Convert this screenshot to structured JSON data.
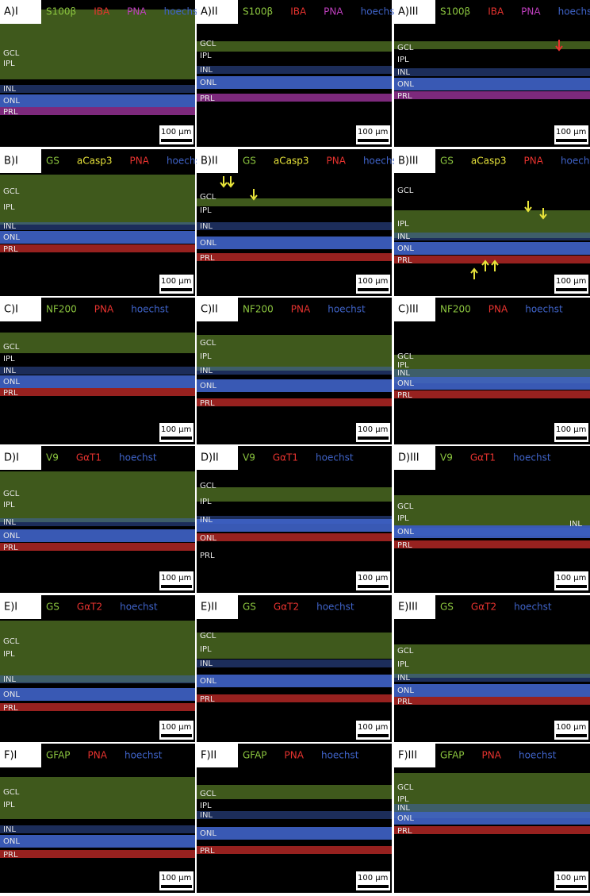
{
  "panels": [
    {
      "label": "A)I",
      "stains": [
        {
          "name": "S100β",
          "color": "#8cc63f"
        },
        {
          "name": "IBA",
          "color": "#e8332f"
        },
        {
          "name": "PNA",
          "color": "#c03fbf"
        },
        {
          "name": "hoechst",
          "color": "#3f63c8"
        }
      ],
      "layers": [
        "GCL",
        "IPL",
        "INL",
        "ONL",
        "PRL"
      ],
      "scale_bar": "100 µm"
    },
    {
      "label": "A)II",
      "stains": [
        {
          "name": "S100β",
          "color": "#8cc63f"
        },
        {
          "name": "IBA",
          "color": "#e8332f"
        },
        {
          "name": "PNA",
          "color": "#c03fbf"
        },
        {
          "name": "hoechst",
          "color": "#3f63c8"
        }
      ],
      "layers": [
        "GCL",
        "IPL",
        "INL",
        "ONL",
        "PRL"
      ],
      "scale_bar": "100 µm"
    },
    {
      "label": "A)III",
      "stains": [
        {
          "name": "S100β",
          "color": "#8cc63f"
        },
        {
          "name": "IBA",
          "color": "#e8332f"
        },
        {
          "name": "PNA",
          "color": "#c03fbf"
        },
        {
          "name": "hoechst",
          "color": "#3f63c8"
        }
      ],
      "layers": [
        "GCL",
        "IPL",
        "INL",
        "ONL",
        "PRL"
      ],
      "scale_bar": "100 µm"
    },
    {
      "label": "B)I",
      "stains": [
        {
          "name": "GS",
          "color": "#8cc63f"
        },
        {
          "name": "aCasp3",
          "color": "#e8e43a"
        },
        {
          "name": "PNA",
          "color": "#e8332f"
        },
        {
          "name": "hoechst",
          "color": "#3f63c8"
        }
      ],
      "layers": [
        "GCL",
        "IPL",
        "INL",
        "ONL",
        "PRL"
      ],
      "scale_bar": "100 µm"
    },
    {
      "label": "B)II",
      "stains": [
        {
          "name": "GS",
          "color": "#8cc63f"
        },
        {
          "name": "aCasp3",
          "color": "#e8e43a"
        },
        {
          "name": "PNA",
          "color": "#e8332f"
        },
        {
          "name": "hoechst",
          "color": "#3f63c8"
        }
      ],
      "layers": [
        "GCL",
        "IPL",
        "INL",
        "ONL",
        "PRL"
      ],
      "scale_bar": "100 µm"
    },
    {
      "label": "B)III",
      "stains": [
        {
          "name": "GS",
          "color": "#8cc63f"
        },
        {
          "name": "aCasp3",
          "color": "#e8e43a"
        },
        {
          "name": "PNA",
          "color": "#e8332f"
        },
        {
          "name": "hoechst",
          "color": "#3f63c8"
        }
      ],
      "layers": [
        "GCL",
        "IPL",
        "INL",
        "ONL",
        "PRL"
      ],
      "scale_bar": "100 µm"
    },
    {
      "label": "C)I",
      "stains": [
        {
          "name": "NF200",
          "color": "#8cc63f"
        },
        {
          "name": "PNA",
          "color": "#e8332f"
        },
        {
          "name": "hoechst",
          "color": "#3f63c8"
        }
      ],
      "layers": [
        "GCL",
        "IPL",
        "INL",
        "ONL",
        "PRL"
      ],
      "scale_bar": "100 µm"
    },
    {
      "label": "C)II",
      "stains": [
        {
          "name": "NF200",
          "color": "#8cc63f"
        },
        {
          "name": "PNA",
          "color": "#e8332f"
        },
        {
          "name": "hoechst",
          "color": "#3f63c8"
        }
      ],
      "layers": [
        "GCL",
        "IPL",
        "INL",
        "ONL",
        "PRL"
      ],
      "scale_bar": "100 µm"
    },
    {
      "label": "C)III",
      "stains": [
        {
          "name": "NF200",
          "color": "#8cc63f"
        },
        {
          "name": "PNA",
          "color": "#e8332f"
        },
        {
          "name": "hoechst",
          "color": "#3f63c8"
        }
      ],
      "layers": [
        "GCL",
        "IPL",
        "INL",
        "ONL",
        "PRL"
      ],
      "scale_bar": "100 µm"
    },
    {
      "label": "D)I",
      "stains": [
        {
          "name": "V9",
          "color": "#8cc63f"
        },
        {
          "name": "GαT1",
          "color": "#e8332f"
        },
        {
          "name": "hoechst",
          "color": "#3f63c8"
        }
      ],
      "layers": [
        "GCL",
        "IPL",
        "INL",
        "ONL",
        "PRL"
      ],
      "scale_bar": "100 µm"
    },
    {
      "label": "D)II",
      "stains": [
        {
          "name": "V9",
          "color": "#8cc63f"
        },
        {
          "name": "GαT1",
          "color": "#e8332f"
        },
        {
          "name": "hoechst",
          "color": "#3f63c8"
        }
      ],
      "layers": [
        "GCL",
        "IPL",
        "INL",
        "ONL",
        "PRL"
      ],
      "scale_bar": "100 µm"
    },
    {
      "label": "D)III",
      "stains": [
        {
          "name": "V9",
          "color": "#8cc63f"
        },
        {
          "name": "GαT1",
          "color": "#e8332f"
        },
        {
          "name": "hoechst",
          "color": "#3f63c8"
        }
      ],
      "layers": [
        "GCL",
        "IPL",
        "ONL",
        "PRL",
        "INL"
      ],
      "scale_bar": "100 µm"
    },
    {
      "label": "E)I",
      "stains": [
        {
          "name": "GS",
          "color": "#8cc63f"
        },
        {
          "name": "GαT2",
          "color": "#e8332f"
        },
        {
          "name": "hoechst",
          "color": "#3f63c8"
        }
      ],
      "layers": [
        "GCL",
        "IPL",
        "INL",
        "ONL",
        "PRL"
      ],
      "scale_bar": "100 µm"
    },
    {
      "label": "E)II",
      "stains": [
        {
          "name": "GS",
          "color": "#8cc63f"
        },
        {
          "name": "GαT2",
          "color": "#e8332f"
        },
        {
          "name": "hoechst",
          "color": "#3f63c8"
        }
      ],
      "layers": [
        "GCL",
        "IPL",
        "INL",
        "ONL",
        "PRL"
      ],
      "scale_bar": "100 µm"
    },
    {
      "label": "E)III",
      "stains": [
        {
          "name": "GS",
          "color": "#8cc63f"
        },
        {
          "name": "GαT2",
          "color": "#e8332f"
        },
        {
          "name": "hoechst",
          "color": "#3f63c8"
        }
      ],
      "layers": [
        "GCL",
        "IPL",
        "INL",
        "ONL",
        "PRL"
      ],
      "scale_bar": "100 µm"
    },
    {
      "label": "F)I",
      "stains": [
        {
          "name": "GFAP",
          "color": "#8cc63f"
        },
        {
          "name": "PNA",
          "color": "#e8332f"
        },
        {
          "name": "hoechst",
          "color": "#3f63c8"
        }
      ],
      "layers": [
        "GCL",
        "IPL",
        "INL",
        "ONL",
        "PRL"
      ],
      "scale_bar": "100 µm"
    },
    {
      "label": "F)II",
      "stains": [
        {
          "name": "GFAP",
          "color": "#8cc63f"
        },
        {
          "name": "PNA",
          "color": "#e8332f"
        },
        {
          "name": "hoechst",
          "color": "#3f63c8"
        }
      ],
      "layers": [
        "GCL",
        "IPL",
        "INL",
        "ONL",
        "PRL"
      ],
      "scale_bar": "100 µm"
    },
    {
      "label": "F)III",
      "stains": [
        {
          "name": "GFAP",
          "color": "#8cc63f"
        },
        {
          "name": "PNA",
          "color": "#e8332f"
        },
        {
          "name": "hoechst",
          "color": "#3f63c8"
        }
      ],
      "layers": [
        "GCL",
        "IPL",
        "INL",
        "ONL",
        "PRL"
      ],
      "scale_bar": "100 µm"
    }
  ]
}
